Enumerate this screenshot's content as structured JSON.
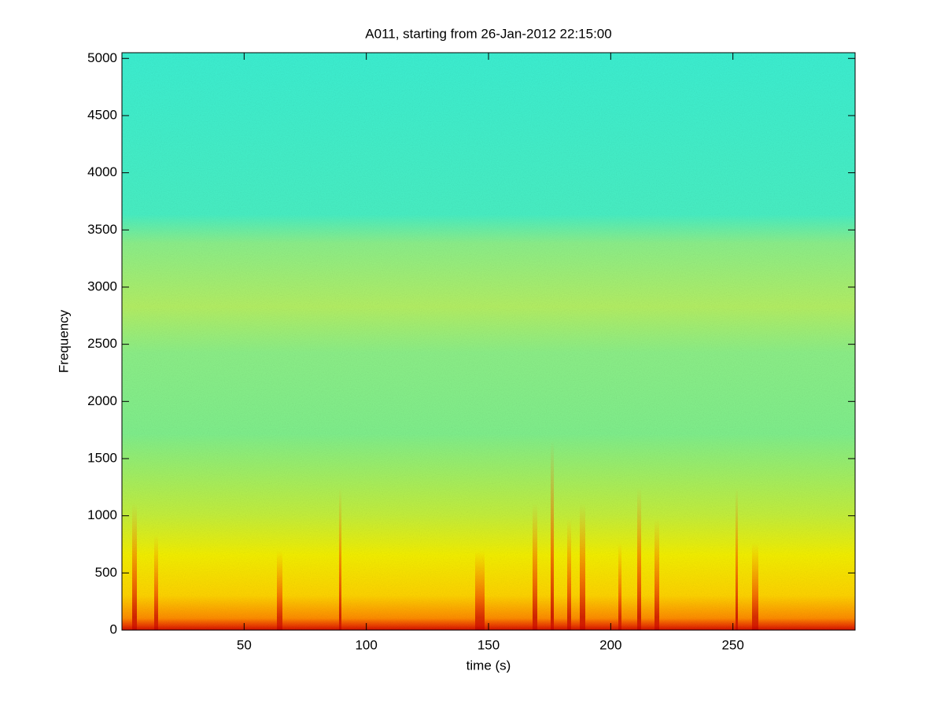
{
  "chart_data": {
    "type": "spectrogram",
    "title": "A011, starting from 26-Jan-2012 22:15:00",
    "xlabel": "time (s)",
    "ylabel": "Frequency",
    "xlim": [
      0,
      300
    ],
    "ylim": [
      0,
      5050
    ],
    "xticks": [
      50,
      100,
      150,
      200,
      250
    ],
    "yticks": [
      0,
      500,
      1000,
      1500,
      2000,
      2500,
      3000,
      3500,
      4000,
      4500,
      5000
    ]
  }
}
